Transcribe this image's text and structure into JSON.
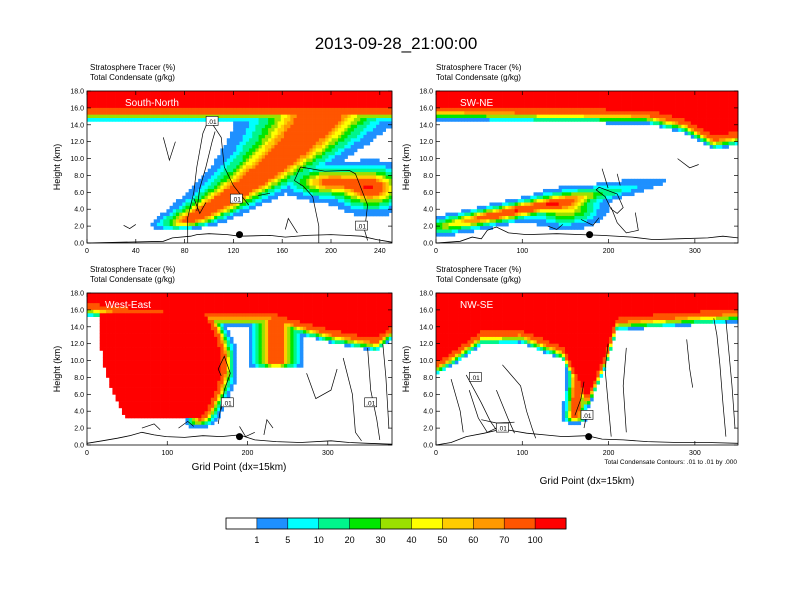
{
  "title": "2013-09-28_21:00:00",
  "panel_header": {
    "line1": "Stratosphere Tracer   (%)",
    "line2": "Total Condensate   (g/kg)"
  },
  "y_axis_label": "Height (km)",
  "x_axis_label": "Grid Point (dx=15km)",
  "contour_note": "Total Condensate Contours: .01 to .01 by .000",
  "contour_label": ".01",
  "colorbar": {
    "levels": [
      "1",
      "5",
      "10",
      "20",
      "30",
      "40",
      "50",
      "60",
      "70",
      "100"
    ],
    "colors": [
      "#ffffff",
      "#1e90ff",
      "#00ffff",
      "#00f58c",
      "#00e600",
      "#9be000",
      "#ffff00",
      "#ffcc00",
      "#ff9900",
      "#ff5500",
      "#ff0000"
    ]
  },
  "chart_data": [
    {
      "type": "heatmap",
      "section": "South-North",
      "ylim": [
        0,
        18
      ],
      "yticks": [
        "0.0",
        "2.0",
        "4.0",
        "6.0",
        "8.0",
        "10.0",
        "12.0",
        "14.0",
        "16.0",
        "18.0"
      ],
      "xlim": [
        0,
        250
      ],
      "xticks": [
        0,
        40,
        80,
        120,
        160,
        200,
        240
      ],
      "xtick_labels": [
        "0",
        "40",
        "80",
        "120",
        "160",
        "200",
        "240"
      ],
      "marker": {
        "x": 125,
        "y": 1.0
      }
    },
    {
      "type": "heatmap",
      "section": "SW-NE",
      "ylim": [
        0,
        18
      ],
      "yticks": [
        "0.0",
        "2.0",
        "4.0",
        "6.0",
        "8.0",
        "10.0",
        "12.0",
        "14.0",
        "16.0",
        "18.0"
      ],
      "xlim": [
        0,
        350
      ],
      "xticks": [
        0,
        100,
        200,
        300
      ],
      "xtick_labels": [
        "0",
        "100",
        "200",
        "300"
      ],
      "marker": {
        "x": 178,
        "y": 1.0
      }
    },
    {
      "type": "heatmap",
      "section": "West-East",
      "ylim": [
        0,
        18
      ],
      "yticks": [
        "0.0",
        "2.0",
        "4.0",
        "6.0",
        "8.0",
        "10.0",
        "12.0",
        "14.0",
        "16.0",
        "18.0"
      ],
      "xlim": [
        0,
        380
      ],
      "xticks": [
        0,
        100,
        200,
        300
      ],
      "xtick_labels": [
        "0",
        "100",
        "200",
        "300"
      ],
      "marker": {
        "x": 190,
        "y": 1.0
      }
    },
    {
      "type": "heatmap",
      "section": "NW-SE",
      "ylim": [
        0,
        18
      ],
      "yticks": [
        "0.0",
        "2.0",
        "4.0",
        "6.0",
        "8.0",
        "10.0",
        "12.0",
        "14.0",
        "16.0",
        "18.0"
      ],
      "xlim": [
        0,
        350
      ],
      "xticks": [
        0,
        100,
        200,
        300
      ],
      "xtick_labels": [
        "0",
        "100",
        "200",
        "300"
      ],
      "marker": {
        "x": 177,
        "y": 1.0
      }
    }
  ]
}
